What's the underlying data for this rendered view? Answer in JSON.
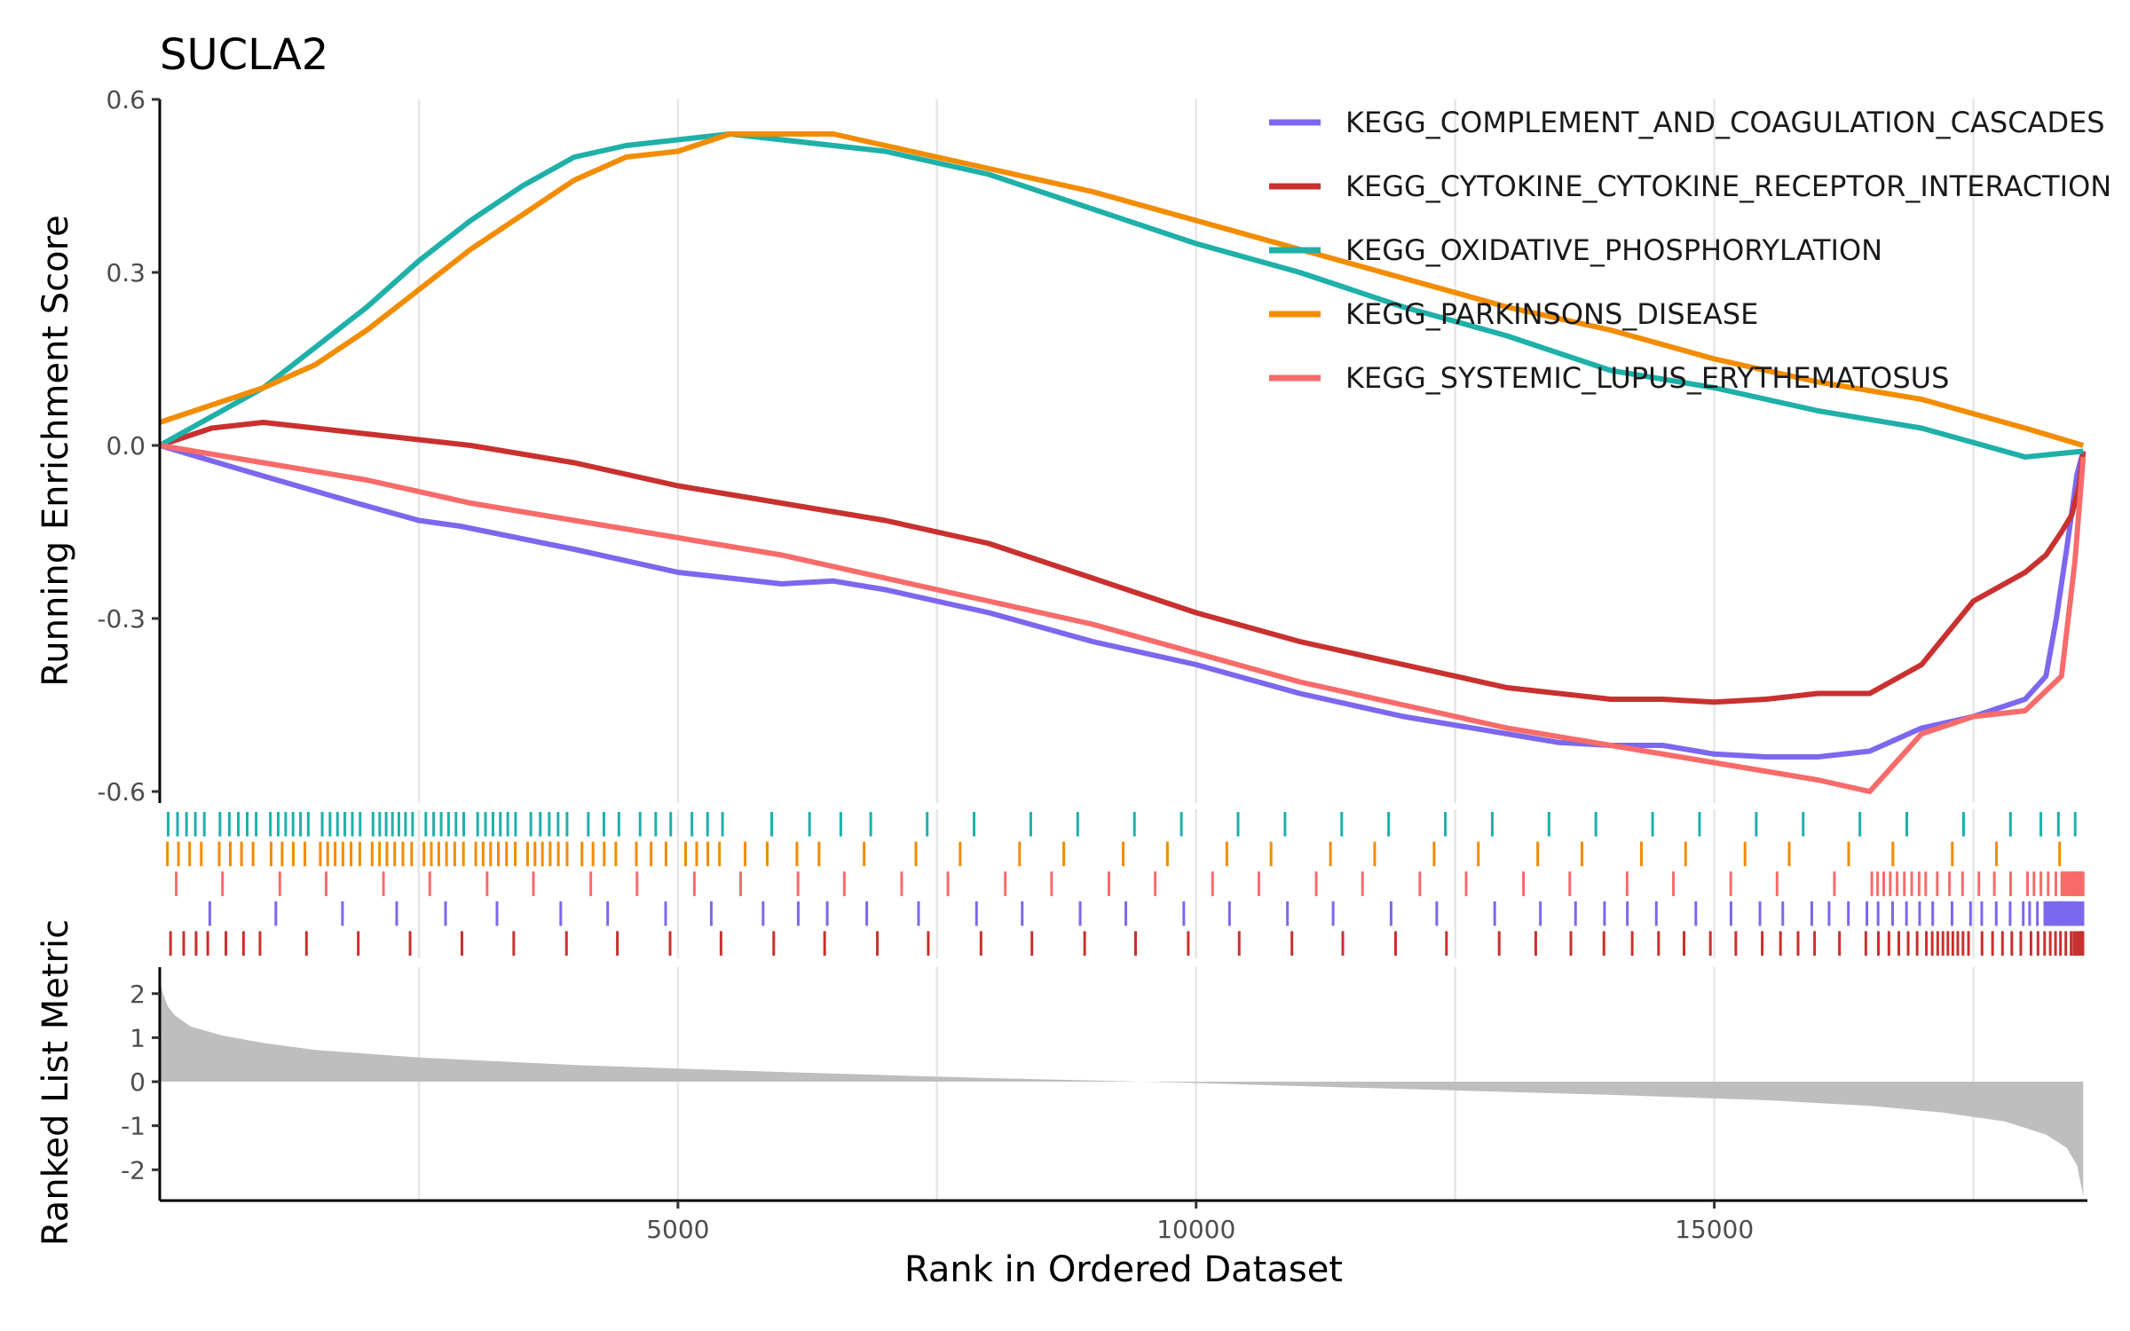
{
  "chart_data": {
    "type": "line",
    "title": "SUCLA2",
    "xlabel": "Rank in Ordered Dataset",
    "ylabel_top": "Running Enrichment Score",
    "ylabel_bottom": "Ranked List Metric",
    "x_range": [
      0,
      18600
    ],
    "top_ylim": [
      -0.62,
      0.6
    ],
    "bottom_ylim": [
      -2.7,
      2.6
    ],
    "x_ticks": [
      {
        "value": 5000,
        "label": "5000"
      },
      {
        "value": 10000,
        "label": "10000"
      },
      {
        "value": 15000,
        "label": "15000"
      }
    ],
    "top_y_ticks": [
      {
        "value": 0.6,
        "label": "0.6"
      },
      {
        "value": 0.3,
        "label": "0.3"
      },
      {
        "value": 0.0,
        "label": "0.0"
      },
      {
        "value": -0.3,
        "label": "-0.3"
      },
      {
        "value": -0.6,
        "label": "-0.6"
      }
    ],
    "bottom_y_ticks": [
      {
        "value": 2,
        "label": "2"
      },
      {
        "value": 1,
        "label": "1"
      },
      {
        "value": 0,
        "label": "0"
      },
      {
        "value": -1,
        "label": "-1"
      },
      {
        "value": -2,
        "label": "-2"
      }
    ],
    "vertical_grid": [
      2500,
      5000,
      7500,
      10000,
      12500,
      15000,
      17500
    ],
    "legend_position": "top-right",
    "series": [
      {
        "name": "KEGG_COMPLEMENT_AND_COAGULATION_CASCADES",
        "color": "#7B68EE",
        "rug_row": 3,
        "x": [
          0,
          750,
          1900,
          2500,
          2900,
          4000,
          5000,
          5500,
          6000,
          6500,
          7000,
          8000,
          9000,
          10000,
          11000,
          12000,
          13000,
          13500,
          14000,
          14500,
          15000,
          15500,
          16000,
          16500,
          17000,
          17500,
          18000,
          18200,
          18300,
          18400,
          18500,
          18560
        ],
        "values": [
          0.0,
          -0.04,
          -0.1,
          -0.13,
          -0.14,
          -0.18,
          -0.22,
          -0.23,
          -0.24,
          -0.235,
          -0.25,
          -0.29,
          -0.34,
          -0.38,
          -0.43,
          -0.47,
          -0.5,
          -0.515,
          -0.52,
          -0.52,
          -0.535,
          -0.54,
          -0.54,
          -0.53,
          -0.49,
          -0.47,
          -0.44,
          -0.4,
          -0.3,
          -0.18,
          -0.05,
          -0.01
        ]
      },
      {
        "name": "KEGG_CYTOKINE_CYTOKINE_RECEPTOR_INTERACTION",
        "color": "#C8312F",
        "rug_row": 4,
        "x": [
          0,
          500,
          1000,
          1500,
          2000,
          2500,
          3000,
          4000,
          5000,
          6000,
          7000,
          8000,
          9000,
          10000,
          11000,
          12000,
          13000,
          14000,
          14500,
          15000,
          15500,
          16000,
          16500,
          17000,
          17500,
          18000,
          18200,
          18350,
          18450,
          18520,
          18560
        ],
        "values": [
          0.0,
          0.03,
          0.04,
          0.03,
          0.02,
          0.01,
          0.0,
          -0.03,
          -0.07,
          -0.1,
          -0.13,
          -0.17,
          -0.23,
          -0.29,
          -0.34,
          -0.38,
          -0.42,
          -0.44,
          -0.44,
          -0.445,
          -0.44,
          -0.43,
          -0.43,
          -0.38,
          -0.27,
          -0.22,
          -0.19,
          -0.15,
          -0.12,
          -0.07,
          -0.01
        ]
      },
      {
        "name": "KEGG_OXIDATIVE_PHOSPHORYLATION",
        "color": "#1FB0A8",
        "rug_row": 0,
        "x": [
          0,
          500,
          1000,
          1500,
          2000,
          2500,
          3000,
          3500,
          4000,
          4500,
          5000,
          5500,
          6000,
          7000,
          8000,
          9000,
          10000,
          11000,
          12000,
          13000,
          14000,
          15000,
          16000,
          17000,
          18000,
          18560
        ],
        "values": [
          0.0,
          0.05,
          0.1,
          0.17,
          0.24,
          0.32,
          0.39,
          0.45,
          0.5,
          0.52,
          0.53,
          0.54,
          0.53,
          0.51,
          0.47,
          0.41,
          0.35,
          0.3,
          0.24,
          0.19,
          0.13,
          0.1,
          0.06,
          0.03,
          -0.02,
          -0.01
        ]
      },
      {
        "name": "KEGG_PARKINSONS_DISEASE",
        "color": "#F28C00",
        "rug_row": 1,
        "x": [
          0,
          500,
          1000,
          1500,
          2000,
          2500,
          3000,
          3500,
          4000,
          4500,
          5000,
          5500,
          6000,
          6500,
          7000,
          8000,
          9000,
          10000,
          11000,
          12000,
          13000,
          14000,
          15000,
          16000,
          17000,
          18000,
          18560
        ],
        "values": [
          0.04,
          0.07,
          0.1,
          0.14,
          0.2,
          0.27,
          0.34,
          0.4,
          0.46,
          0.5,
          0.51,
          0.54,
          0.54,
          0.54,
          0.52,
          0.48,
          0.44,
          0.39,
          0.34,
          0.29,
          0.24,
          0.2,
          0.15,
          0.11,
          0.08,
          0.03,
          0.0
        ]
      },
      {
        "name": "KEGG_SYSTEMIC_LUPUS_ERYTHEMATOSUS",
        "color": "#F86B6B",
        "rug_row": 2,
        "x": [
          0,
          1000,
          2000,
          3000,
          4000,
          5000,
          6000,
          7000,
          8000,
          9000,
          10000,
          11000,
          12000,
          13000,
          14000,
          15000,
          16000,
          16500,
          17000,
          17500,
          18000,
          18350,
          18480,
          18560
        ],
        "values": [
          0.0,
          -0.03,
          -0.06,
          -0.1,
          -0.13,
          -0.16,
          -0.19,
          -0.23,
          -0.27,
          -0.31,
          -0.36,
          -0.41,
          -0.45,
          -0.49,
          -0.52,
          -0.55,
          -0.58,
          -0.6,
          -0.5,
          -0.47,
          -0.46,
          -0.4,
          -0.2,
          -0.02
        ]
      }
    ],
    "ranked_metric": {
      "x": [
        0,
        30,
        80,
        150,
        300,
        600,
        1000,
        1500,
        2500,
        4000,
        6000,
        8000,
        9300,
        10000,
        11000,
        12500,
        14000,
        15500,
        16500,
        17200,
        17800,
        18200,
        18400,
        18500,
        18560
      ],
      "values": [
        2.3,
        2.0,
        1.7,
        1.5,
        1.25,
        1.05,
        0.88,
        0.72,
        0.55,
        0.38,
        0.22,
        0.08,
        0.01,
        -0.03,
        -0.1,
        -0.2,
        -0.3,
        -0.42,
        -0.55,
        -0.7,
        -0.9,
        -1.2,
        -1.5,
        -1.9,
        -2.6
      ]
    }
  }
}
